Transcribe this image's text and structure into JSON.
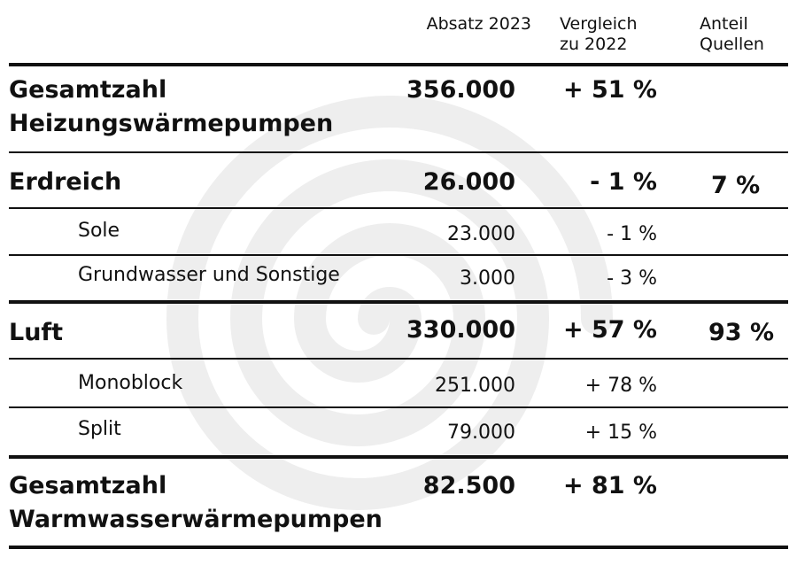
{
  "chart_data": {
    "type": "table",
    "columns": [
      {
        "key": "label",
        "label": ""
      },
      {
        "key": "absatz",
        "label": "Absatz 2023"
      },
      {
        "key": "vergleich",
        "label": "Vergleich zu 2022",
        "lines": [
          "Vergleich",
          "zu 2022"
        ]
      },
      {
        "key": "anteil",
        "label": "Anteil Quellen",
        "lines": [
          "Anteil",
          "Quellen"
        ]
      }
    ],
    "rows": [
      {
        "id": "gesamt-heizung",
        "level": 0,
        "label_lines": [
          "Gesamtzahl",
          "Heizungswärmepumpen"
        ],
        "absatz": "356.000",
        "vergleich": "+ 51 %",
        "anteil": ""
      },
      {
        "id": "erdreich",
        "level": 0,
        "label_lines": [
          "Erdreich"
        ],
        "absatz": "26.000",
        "vergleich": "- 1 %",
        "anteil": "7 %"
      },
      {
        "id": "sole",
        "level": 1,
        "label_lines": [
          "Sole"
        ],
        "absatz": "23.000",
        "vergleich": "- 1 %",
        "anteil": ""
      },
      {
        "id": "grundwasser",
        "level": 1,
        "label_lines": [
          "Grundwasser und Sonstige"
        ],
        "absatz": "3.000",
        "vergleich": "- 3 %",
        "anteil": ""
      },
      {
        "id": "luft",
        "level": 0,
        "label_lines": [
          "Luft"
        ],
        "absatz": "330.000",
        "vergleich": "+ 57 %",
        "anteil": "93 %"
      },
      {
        "id": "monoblock",
        "level": 1,
        "label_lines": [
          "Monoblock"
        ],
        "absatz": "251.000",
        "vergleich": "+ 78 %",
        "anteil": ""
      },
      {
        "id": "split",
        "level": 1,
        "label_lines": [
          "Split"
        ],
        "absatz": "79.000",
        "vergleich": "+ 15 %",
        "anteil": ""
      },
      {
        "id": "gesamt-warmwasser",
        "level": 0,
        "label_lines": [
          "Gesamtzahl",
          "Warmwasserwärmepumpen"
        ],
        "absatz": "82.500",
        "vergleich": "+ 81 %",
        "anteil": ""
      }
    ]
  },
  "colors": {
    "text": "#111111",
    "watermark": "#eeeeee",
    "background": "#ffffff"
  }
}
